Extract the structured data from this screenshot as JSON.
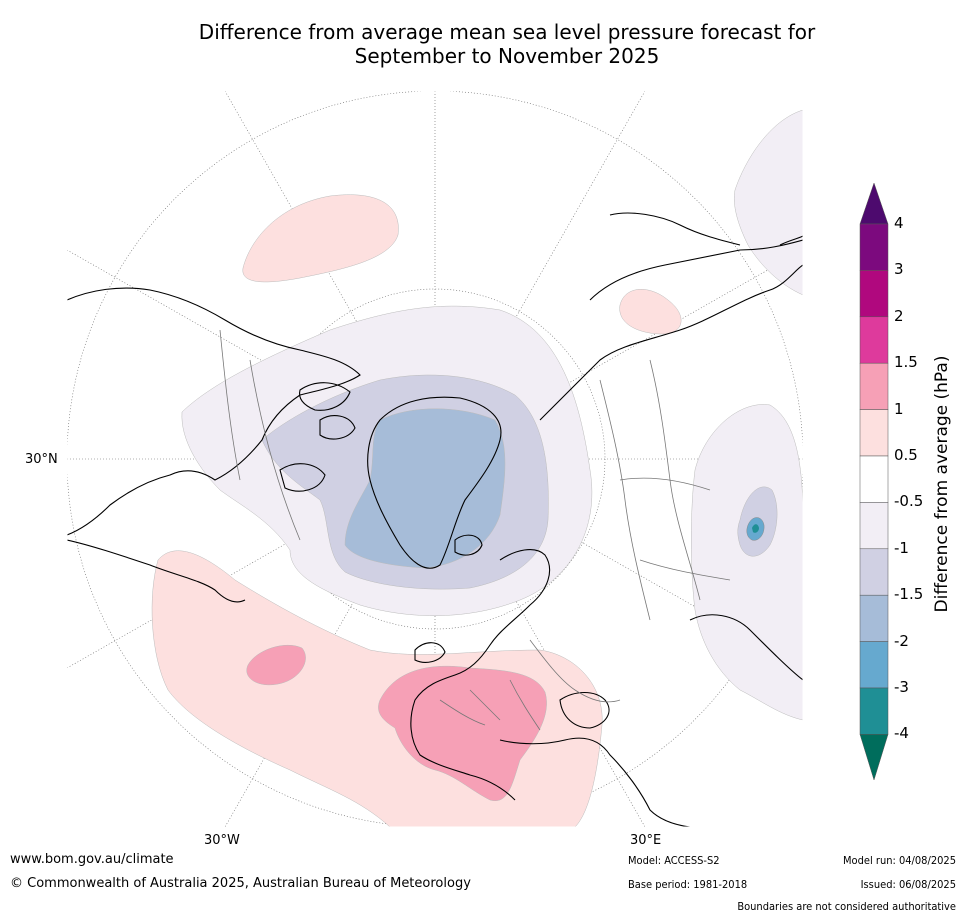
{
  "title_line1": "Difference from average mean sea level pressure forecast for",
  "title_line2": "September to November 2025",
  "map": {
    "projection": "polar stereographic (north)",
    "lat_label_left": "30°N",
    "lon_label_bottom_left": "30°W",
    "lon_label_bottom_right": "30°E"
  },
  "colorbar": {
    "label": "Difference from average (hPa)",
    "ticks": [
      "4",
      "3",
      "2",
      "1.5",
      "1",
      "0.5",
      "-0.5",
      "-1",
      "-1.5",
      "-2",
      "-3",
      "-4"
    ],
    "colors": {
      "gt4": "#4d0a6e",
      "3_to_4": "#7c0a7e",
      "2_to_3": "#b0087e",
      "1.5_to_2": "#de3a9c",
      "1_to_1.5": "#f6a0b6",
      "0.5_to_1": "#fde0df",
      "-0.5_to_0.5": "#ffffff",
      "-1_to_-0.5": "#f2eef5",
      "-1.5_to_-1": "#d0d0e3",
      "-2_to_-1.5": "#a6bcd8",
      "-3_to_-2": "#66a9cf",
      "-4_to_-3": "#1f8f95",
      "lt-4": "#006d5c"
    }
  },
  "footer": {
    "website": "www.bom.gov.au/climate",
    "copyright": "© Commonwealth of Australia 2025, Australian Bureau of Meteorology",
    "model": "Model: ACCESS-S2",
    "base_period": "Base period: 1981-2018",
    "model_run": "Model run: 04/08/2025",
    "issued": "Issued: 06/08/2025",
    "disclaimer": "Boundaries are not considered authoritative"
  }
}
